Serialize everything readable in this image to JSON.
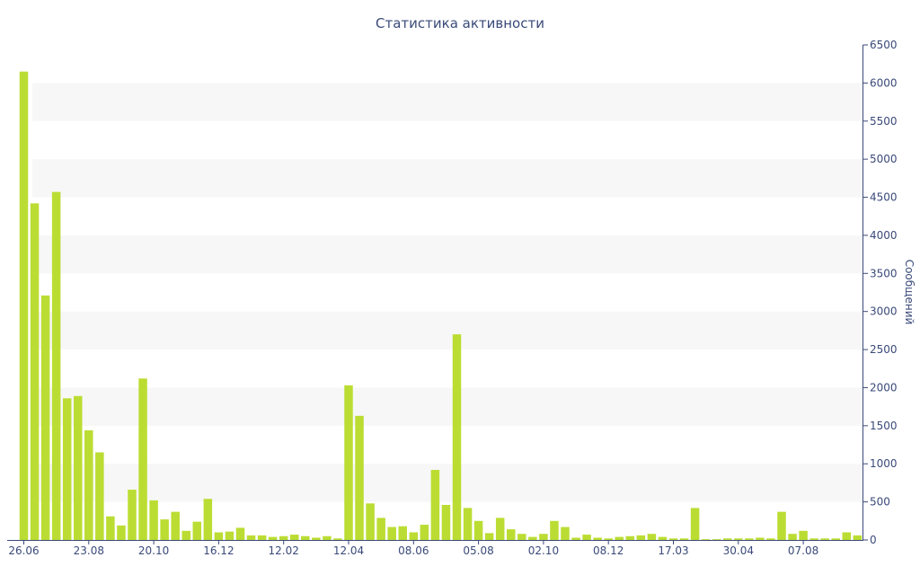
{
  "chart_data": {
    "type": "bar",
    "title": "Статистика активности",
    "ylabel": "Сообщений",
    "ylim": [
      0,
      6500
    ],
    "y_axis_side": "right",
    "y_ticks": [
      "0",
      "500",
      "1000",
      "1500",
      "2000",
      "2500",
      "3000",
      "3500",
      "4000",
      "4500",
      "5000",
      "5500",
      "6000",
      "6500"
    ],
    "x_tick_labels": [
      "26.06",
      "23.08",
      "20.10",
      "16.12",
      "12.02",
      "12.04",
      "08.06",
      "05.08",
      "02.10",
      "08.12",
      "17.03",
      "30.04",
      "07.08"
    ],
    "bar_color": "#bbdd33",
    "band_color": "#f7f7f7",
    "text_color": "#3a4a7a",
    "series": [
      {
        "values": [
          6150,
          4420,
          3210,
          4570,
          1860,
          1890,
          1440,
          1150,
          310,
          190,
          660,
          2120,
          520,
          270,
          370,
          120,
          240,
          540,
          100,
          110,
          160,
          60,
          60,
          40,
          50,
          70,
          50,
          30,
          50,
          20,
          2030,
          1630,
          480,
          290,
          170,
          180,
          100,
          200,
          920,
          460,
          2700,
          420,
          250,
          90,
          290,
          140,
          80,
          40,
          80,
          250,
          170,
          30,
          70,
          30,
          20,
          40,
          50,
          60,
          80,
          40,
          20,
          20,
          420,
          10,
          10,
          20,
          20,
          20,
          30,
          20,
          370,
          80,
          120,
          20,
          20,
          20,
          100,
          60
        ]
      }
    ]
  }
}
